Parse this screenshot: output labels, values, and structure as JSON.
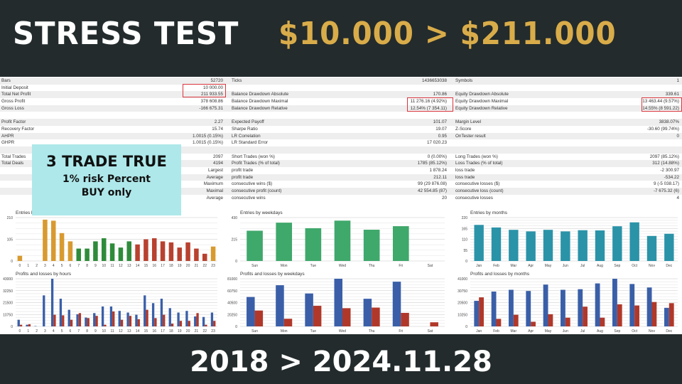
{
  "header": {
    "title": "STRESS TEST",
    "amount": "$10.000 > $211.000"
  },
  "footer": {
    "period": "2018 > 2024.11.28"
  },
  "overlay": {
    "line1": "3 TRADE TRUE",
    "line2": "1% risk Percent",
    "line3": "BUY only"
  },
  "colors": {
    "background": "#232b2c",
    "gold": "#d9ac4a",
    "highlight_box": "#d9363e",
    "overlay": "#aee8ea",
    "profit": "#3a5fa8",
    "loss": "#b0382a"
  },
  "table": [
    [
      "Bars",
      "52720",
      "Ticks",
      "1436653038",
      "Symbols",
      "1"
    ],
    [
      "Initial Deposit",
      "10 000.00",
      "",
      "",
      "",
      ""
    ],
    [
      "Total Net Profit",
      "211 933.55",
      "Balance Drawdown Absolute",
      "170.86",
      "Equity Drawdown Absolute",
      "339.61"
    ],
    [
      "Gross Profit",
      "378 608.86",
      "Balance Drawdown Maximal",
      "11 276.16 (4.92%)",
      "Equity Drawdown Maximal",
      "13 463.44 (9.57%)"
    ],
    [
      "Gross Loss",
      "-166 675.31",
      "Balance Drawdown Relative",
      "12.54% (7 354.11)",
      "Equity Drawdown Relative",
      "14.55% (8 591.22)"
    ],
    [
      "",
      "",
      "",
      "",
      "",
      ""
    ],
    [
      "Profit Factor",
      "2.27",
      "Expected Payoff",
      "101.07",
      "Margin Level",
      "3838.07%"
    ],
    [
      "Recovery Factor",
      "15.74",
      "Sharpe Ratio",
      "19.07",
      "Z-Score",
      "-30.60 (99.74%)"
    ],
    [
      "AHPR",
      "1.0015 (0.15%)",
      "LR Correlation",
      "0.95",
      "OnTester result",
      "0"
    ],
    [
      "GHPR",
      "1.0015 (0.15%)",
      "LR Standard Error",
      "17 020.23",
      "",
      ""
    ],
    [
      "",
      "",
      "",
      "",
      "",
      ""
    ],
    [
      "Total Trades",
      "2097",
      "Short Trades (won %)",
      "0 (0.00%)",
      "Long Trades (won %)",
      "2097 (85.12%)"
    ],
    [
      "Total Deals",
      "4194",
      "Profit Trades (% of total)",
      "1785 (85.12%)",
      "Loss Trades (% of total)",
      "312 (14.88%)"
    ],
    [
      "",
      "Largest",
      "profit trade",
      "1 878.24",
      "loss trade",
      "-2 300.97"
    ],
    [
      "",
      "Average",
      "profit trade",
      "212.11",
      "loss trade",
      "-534.22"
    ],
    [
      "",
      "Maximum",
      "consecutive wins ($)",
      "99 (29 876.08)",
      "consecutive losses ($)",
      "9 (-5 038.17)"
    ],
    [
      "",
      "Maximal",
      "consecutive profit (count)",
      "42 554.85 (87)",
      "consecutive loss (count)",
      "-7 675.32 (6)"
    ],
    [
      "",
      "Average",
      "consecutive wins",
      "20",
      "consecutive losses",
      "4"
    ]
  ],
  "chart_data": [
    {
      "type": "bar",
      "title": "Entries by hours (Asia,Europe,USA)",
      "yticks": [
        "0",
        "105",
        "210"
      ],
      "ylim": [
        0,
        210
      ],
      "categories": [
        "0",
        "1",
        "2",
        "3",
        "4",
        "5",
        "6",
        "7",
        "8",
        "9",
        "10",
        "11",
        "12",
        "13",
        "14",
        "15",
        "16",
        "17",
        "18",
        "19",
        "20",
        "21",
        "22",
        "23"
      ],
      "series": [
        {
          "values": [
            25,
            0,
            0,
            200,
            195,
            135,
            95,
            60,
            60,
            95,
            110,
            85,
            65,
            95,
            80,
            105,
            110,
            95,
            90,
            65,
            90,
            60,
            35,
            70
          ],
          "colors": [
            "#d89a30",
            "#d89a30",
            "#d89a30",
            "#d89a30",
            "#d89a30",
            "#d89a30",
            "#d89a30",
            "#2e8b3a",
            "#2e8b3a",
            "#2e8b3a",
            "#2e8b3a",
            "#2e8b3a",
            "#2e8b3a",
            "#2e8b3a",
            "#b8412f",
            "#b8412f",
            "#b8412f",
            "#b8412f",
            "#b8412f",
            "#b8412f",
            "#b8412f",
            "#b8412f",
            "#b8412f",
            "#d89a30"
          ]
        }
      ]
    },
    {
      "type": "bar",
      "title": "Profits and losses by hours",
      "yticks": [
        "0",
        "10750",
        "21500",
        "32250",
        "43000"
      ],
      "ylim": [
        0,
        43000
      ],
      "categories": [
        "0",
        "1",
        "2",
        "3",
        "4",
        "5",
        "6",
        "7",
        "8",
        "9",
        "10",
        "11",
        "12",
        "13",
        "14",
        "15",
        "16",
        "17",
        "18",
        "19",
        "20",
        "21",
        "22",
        "23"
      ],
      "series": [
        {
          "values": [
            6000,
            1500,
            300,
            28000,
            43000,
            25000,
            15000,
            11000,
            8000,
            12000,
            18000,
            18000,
            14000,
            12500,
            10500,
            28000,
            21000,
            25000,
            16500,
            12500,
            14000,
            9000,
            8500,
            12500
          ],
          "color": "#3a5fa8"
        },
        {
          "values": [
            1500,
            2000,
            0,
            0,
            10500,
            10000,
            6000,
            12000,
            7500,
            9500,
            1500,
            13500,
            6000,
            9500,
            6500,
            15000,
            7500,
            10500,
            2500,
            5000,
            5000,
            12000,
            1500,
            5000
          ],
          "color": "#b0382a"
        }
      ]
    },
    {
      "type": "bar",
      "title": "Entries by weekdays",
      "yticks": [
        "0",
        "215",
        "430"
      ],
      "ylim": [
        0,
        430
      ],
      "categories": [
        "Sun",
        "Mon",
        "Tue",
        "Wed",
        "Thu",
        "Fri",
        "Sat"
      ],
      "series": [
        {
          "values": [
            300,
            380,
            325,
            400,
            310,
            345,
            0
          ],
          "color": "#3fa86b"
        }
      ]
    },
    {
      "type": "bar",
      "title": "Profits and losses by weekdays",
      "yticks": [
        "0",
        "20250",
        "40500",
        "60750",
        "81000"
      ],
      "ylim": [
        0,
        81000
      ],
      "categories": [
        "Sun",
        "Mon",
        "Tue",
        "Wed",
        "Thu",
        "Fri",
        "Sat"
      ],
      "series": [
        {
          "values": [
            50000,
            70000,
            56000,
            81000,
            47000,
            76000,
            0
          ],
          "color": "#3a5fa8"
        },
        {
          "values": [
            27000,
            13000,
            35000,
            31000,
            32000,
            23000,
            7000
          ],
          "color": "#b0382a"
        }
      ]
    },
    {
      "type": "bar",
      "title": "Entries by months",
      "yticks": [
        "0",
        "55",
        "110",
        "165",
        "220"
      ],
      "ylim": [
        0,
        220
      ],
      "categories": [
        "Jan",
        "Feb",
        "Mar",
        "Apr",
        "May",
        "Jun",
        "Jul",
        "Aug",
        "Sep",
        "Oct",
        "Nov",
        "Dec"
      ],
      "series": [
        {
          "values": [
            183,
            170,
            158,
            150,
            158,
            150,
            156,
            155,
            176,
            196,
            127,
            138
          ],
          "color": "#2a93a8"
        }
      ]
    },
    {
      "type": "bar",
      "title": "Profits and losses by months",
      "yticks": [
        "0",
        "10250",
        "20500",
        "30750",
        "41000"
      ],
      "ylim": [
        0,
        41000
      ],
      "categories": [
        "Jan",
        "Feb",
        "Mar",
        "Apr",
        "May",
        "Jun",
        "Jul",
        "Aug",
        "Sep",
        "Oct",
        "Nov",
        "Dec"
      ],
      "series": [
        {
          "values": [
            22000,
            30000,
            31500,
            30500,
            36000,
            31500,
            32000,
            37000,
            41000,
            36500,
            33500,
            16000
          ],
          "color": "#3a5fa8"
        },
        {
          "values": [
            25000,
            6500,
            10000,
            4000,
            10500,
            7500,
            17000,
            7500,
            19000,
            18000,
            21000,
            20000
          ],
          "color": "#b0382a"
        }
      ]
    }
  ]
}
